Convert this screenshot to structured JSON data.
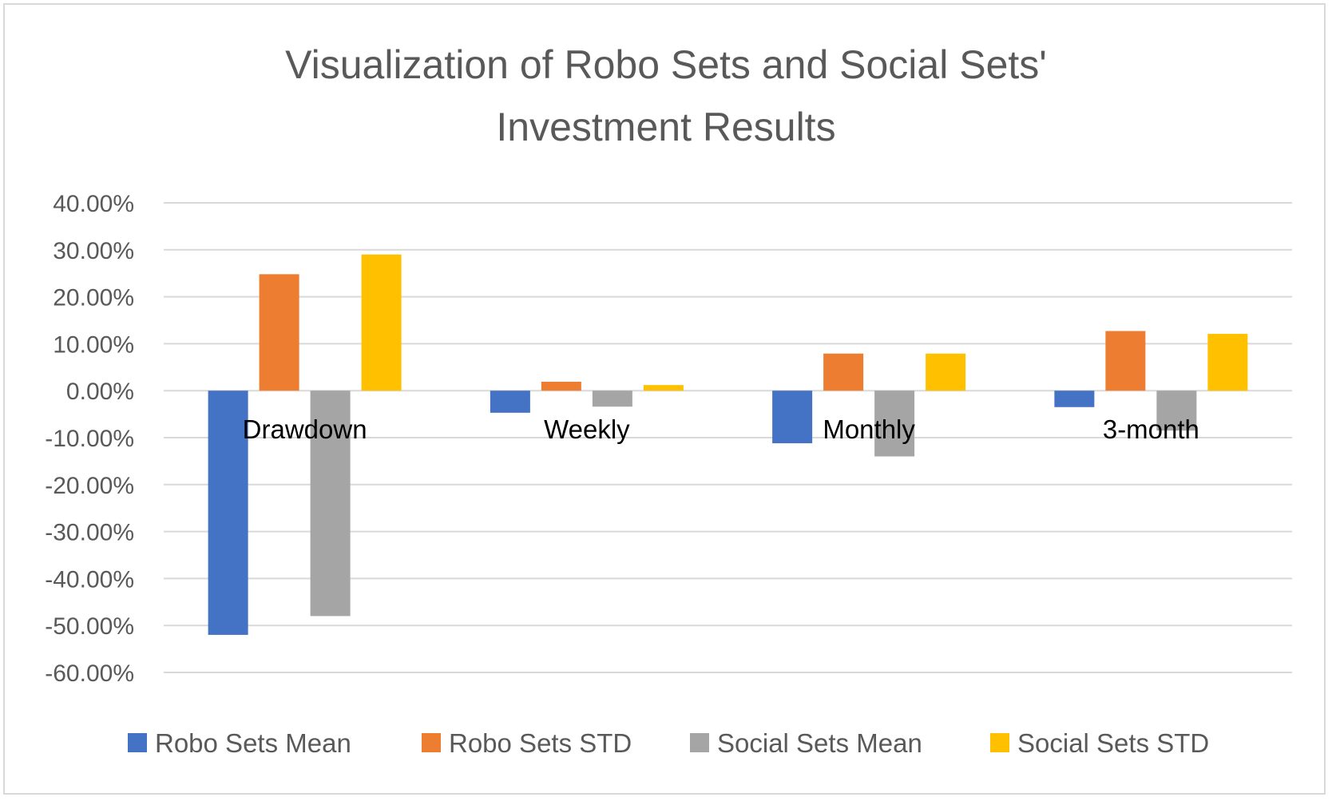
{
  "chart_data": {
    "type": "bar",
    "title": "Visualization of Robo Sets and Social Sets' Investment Results",
    "title_lines": [
      "Visualization of Robo Sets and Social Sets'",
      "Investment Results"
    ],
    "xlabel": "",
    "ylabel": "",
    "categories": [
      "Drawdown",
      "Weekly",
      "Monthly",
      "3-month"
    ],
    "series": [
      {
        "name": "Robo Sets Mean",
        "color": "#4472C4",
        "values": [
          -0.52,
          -0.047,
          -0.112,
          -0.035
        ]
      },
      {
        "name": "Robo Sets STD",
        "color": "#ED7D31",
        "values": [
          0.248,
          0.019,
          0.079,
          0.127
        ]
      },
      {
        "name": "Social Sets Mean",
        "color": "#A5A5A5",
        "values": [
          -0.48,
          -0.034,
          -0.14,
          -0.085
        ]
      },
      {
        "name": "Social Sets STD",
        "color": "#FFC000",
        "values": [
          0.29,
          0.012,
          0.079,
          0.121
        ]
      }
    ],
    "ylim": [
      -0.6,
      0.4
    ],
    "yticks": [
      0.4,
      0.3,
      0.2,
      0.1,
      0.0,
      -0.1,
      -0.2,
      -0.3,
      -0.4,
      -0.5,
      -0.6
    ],
    "ytick_labels": [
      "40.00%",
      "30.00%",
      "20.00%",
      "10.00%",
      "0.00%",
      "-10.00%",
      "-20.00%",
      "-30.00%",
      "-40.00%",
      "-50.00%",
      "-60.00%"
    ],
    "grid": true,
    "legend": "bottom",
    "gridline_color": "#d9d9d9"
  }
}
